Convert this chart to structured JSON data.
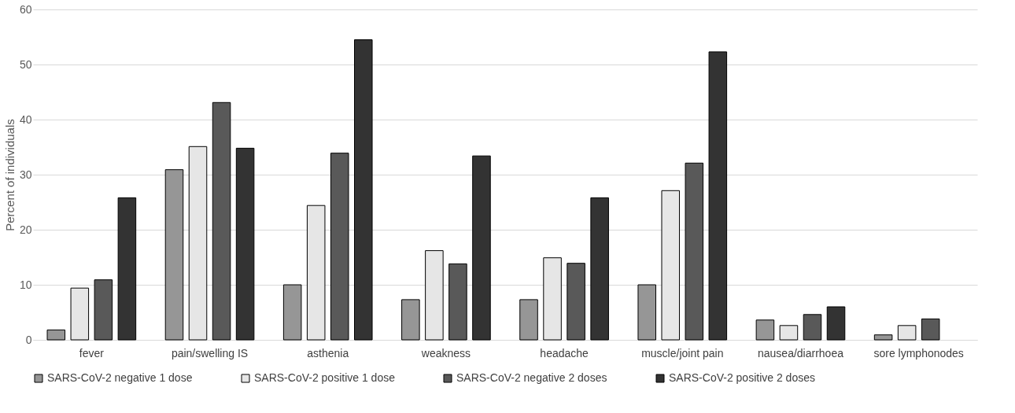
{
  "chart_data": {
    "type": "bar",
    "ylabel": "Percent of individuals",
    "categories": [
      "fever",
      "pain/swelling IS",
      "asthenia",
      "weakness",
      "headache",
      "muscle/joint pain",
      "nausea/diarrhoea",
      "sore lymphonodes"
    ],
    "series": [
      {
        "name": "SARS-CoV-2 negative 1 dose",
        "color": "#969696",
        "values": [
          1.8,
          30.9,
          10.0,
          7.3,
          7.3,
          10.0,
          3.6,
          0.9
        ]
      },
      {
        "name": "SARS-CoV-2 positive 1 dose",
        "color": "#e6e6e6",
        "values": [
          9.4,
          35.1,
          24.4,
          16.2,
          14.9,
          27.1,
          2.6,
          2.6
        ]
      },
      {
        "name": "SARS-CoV-2 negative 2 doses",
        "color": "#595959",
        "values": [
          10.9,
          43.1,
          33.9,
          13.8,
          13.9,
          32.1,
          4.6,
          3.8
        ]
      },
      {
        "name": "SARS-CoV-2 positive 2 doses",
        "color": "#333333",
        "values": [
          25.8,
          34.8,
          54.5,
          33.4,
          25.8,
          52.3,
          6.0,
          null
        ]
      }
    ],
    "ylim": [
      0,
      60
    ],
    "yticks": [
      0,
      10,
      20,
      30,
      40,
      50,
      60
    ],
    "grid": "y",
    "legend": "bottom"
  }
}
